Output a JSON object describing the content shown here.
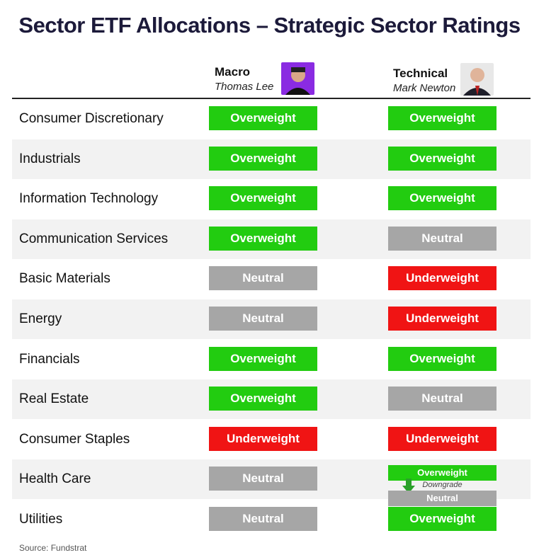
{
  "title": "Sector ETF Allocations – Strategic Sector Ratings",
  "columns": [
    {
      "label": "Macro",
      "name": "Thomas Lee"
    },
    {
      "label": "Technical",
      "name": "Mark Newton"
    }
  ],
  "rating_colors": {
    "Overweight": "#22cc10",
    "Neutral": "#a6a6a6",
    "Underweight": "#f01414"
  },
  "rows": [
    {
      "sector": "Consumer Discretionary",
      "ratings": [
        "Overweight",
        "Overweight"
      ]
    },
    {
      "sector": "Industrials",
      "ratings": [
        "Overweight",
        "Overweight"
      ]
    },
    {
      "sector": "Information Technology",
      "ratings": [
        "Overweight",
        "Overweight"
      ]
    },
    {
      "sector": "Communication Services",
      "ratings": [
        "Overweight",
        "Neutral"
      ]
    },
    {
      "sector": "Basic Materials",
      "ratings": [
        "Neutral",
        "Underweight"
      ]
    },
    {
      "sector": "Energy",
      "ratings": [
        "Neutral",
        "Underweight"
      ]
    },
    {
      "sector": "Financials",
      "ratings": [
        "Overweight",
        "Overweight"
      ]
    },
    {
      "sector": "Real Estate",
      "ratings": [
        "Overweight",
        "Neutral"
      ]
    },
    {
      "sector": "Consumer Staples",
      "ratings": [
        "Underweight",
        "Underweight"
      ]
    },
    {
      "sector": "Health Care",
      "ratings": [
        "Neutral",
        {
          "from": "Overweight",
          "note": "Downgrade",
          "to": "Neutral"
        }
      ]
    },
    {
      "sector": "Utilities",
      "ratings": [
        "Neutral",
        "Overweight"
      ]
    }
  ],
  "source": "Source: Fundstrat"
}
